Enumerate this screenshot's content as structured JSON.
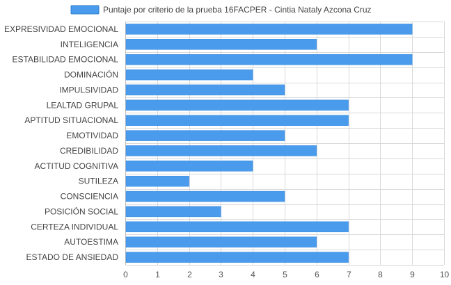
{
  "chart_data": {
    "type": "bar",
    "orientation": "horizontal",
    "categories": [
      "EXPRESIVIDAD EMOCIONAL",
      "INTELIGENCIA",
      "ESTABILIDAD EMOCIONAL",
      "DOMINACIÓN",
      "IMPULSIVIDAD",
      "LEALTAD GRUPAL",
      "APTITUD SITUACIONAL",
      "EMOTIVIDAD",
      "CREDIBILIDAD",
      "ACTITUD COGNITIVA",
      "SUTILEZA",
      "CONSCIENCIA",
      "POSICIÓN SOCIAL",
      "CERTEZA INDIVIDUAL",
      "AUTOESTIMA",
      "ESTADO DE ANSIEDAD"
    ],
    "series": [
      {
        "name": "Puntaje por criterio de la prueba 16FACPER - Cintia Nataly Azcona Cruz",
        "values": [
          9,
          6,
          9,
          4,
          5,
          7,
          7,
          5,
          6,
          4,
          2,
          5,
          3,
          7,
          6,
          7
        ],
        "color": "#4a9bec"
      }
    ],
    "xlim": [
      0,
      10
    ],
    "xticks": [
      "0",
      "1",
      "2",
      "3",
      "4",
      "5",
      "6",
      "7",
      "8",
      "9",
      "10"
    ],
    "grid": true,
    "legend_position": "top"
  }
}
